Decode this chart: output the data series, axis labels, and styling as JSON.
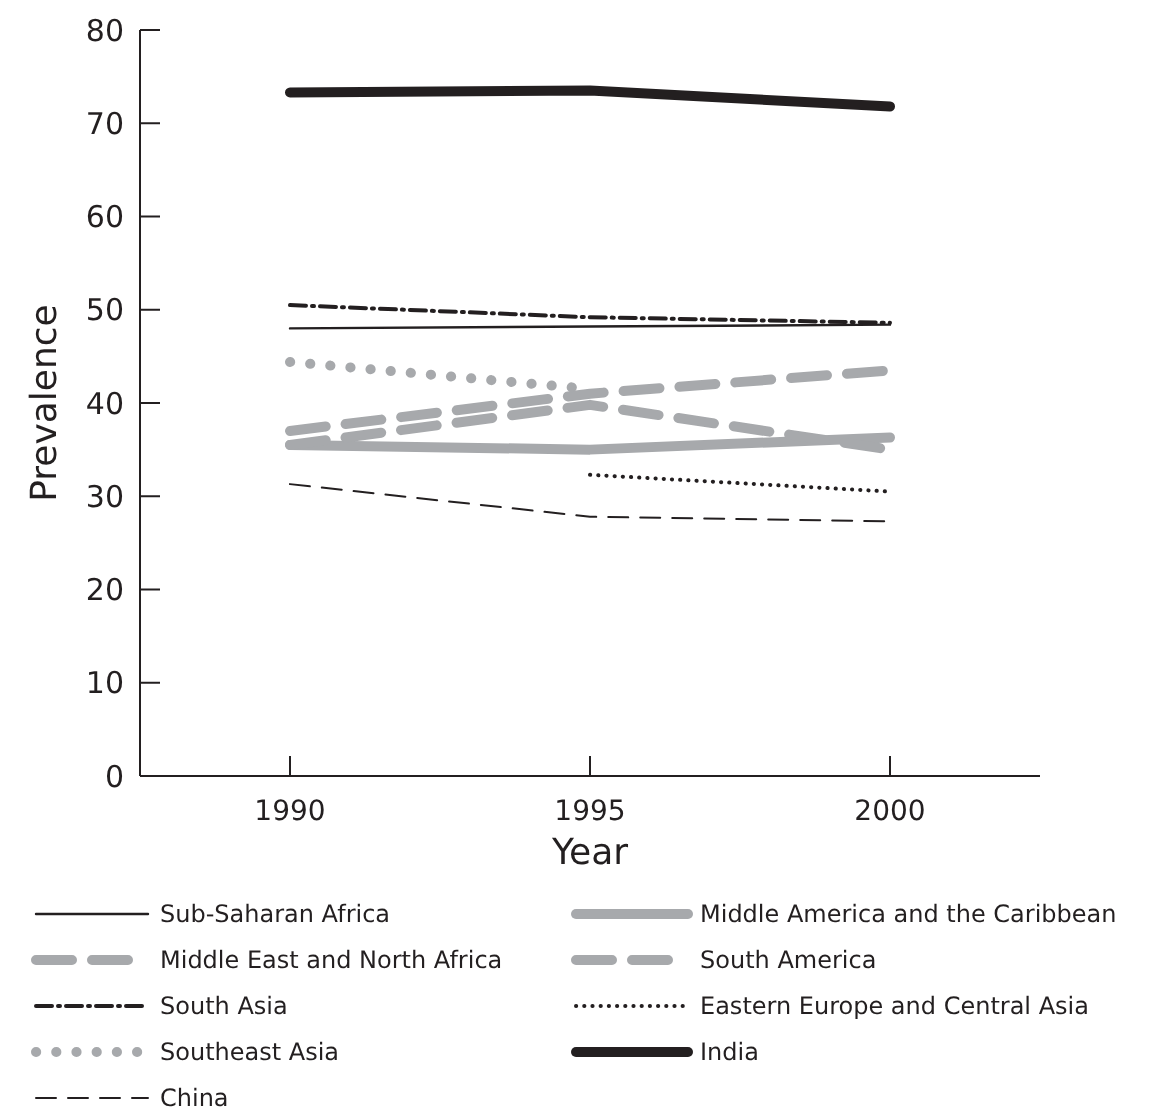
{
  "chart_data": {
    "type": "line",
    "xlabel": "Year",
    "ylabel": "Prevalence",
    "x": [
      1990,
      1995,
      2000
    ],
    "xlim": [
      1987.5,
      2002.5
    ],
    "xticks": [
      1990,
      1995,
      2000
    ],
    "ylim": [
      0,
      80
    ],
    "yticks": [
      0,
      10,
      20,
      30,
      40,
      50,
      60,
      70,
      80
    ],
    "grid": false,
    "legend": "bottom",
    "marker": "none",
    "series": [
      {
        "name": "Sub-Saharan Africa",
        "color": "#231f20",
        "line_style": "solid",
        "values": [
          48,
          48.2,
          48.4
        ]
      },
      {
        "name": "Middle America and the Caribbean",
        "color": "#a7a9ac",
        "line_style": "solid",
        "values": [
          35.5,
          35,
          36.3
        ]
      },
      {
        "name": "Middle East and North Africa",
        "color": "#a7a9ac",
        "line_style": "dashed",
        "values": [
          35.5,
          39.8,
          35
        ]
      },
      {
        "name": "South America",
        "color": "#a7a9ac",
        "line_style": "dashed",
        "values": [
          37,
          41,
          43.5
        ]
      },
      {
        "name": "South Asia",
        "color": "#231f20",
        "line_style": "dashdot",
        "values": [
          50.5,
          49.2,
          48.6
        ]
      },
      {
        "name": "Eastern Europe and Central Asia",
        "color": "#231f20",
        "line_style": "dotted",
        "values": [
          null,
          32.3,
          30.5
        ]
      },
      {
        "name": "Southeast Asia",
        "color": "#a7a9ac",
        "line_style": "dotted",
        "values": [
          44.4,
          41.5,
          null
        ]
      },
      {
        "name": "India",
        "color": "#231f20",
        "line_style": "solid",
        "values": [
          73.3,
          73.5,
          71.8
        ]
      },
      {
        "name": "China",
        "color": "#231f20",
        "line_style": "dashed",
        "values": [
          31.3,
          27.8,
          27.3
        ]
      }
    ]
  }
}
